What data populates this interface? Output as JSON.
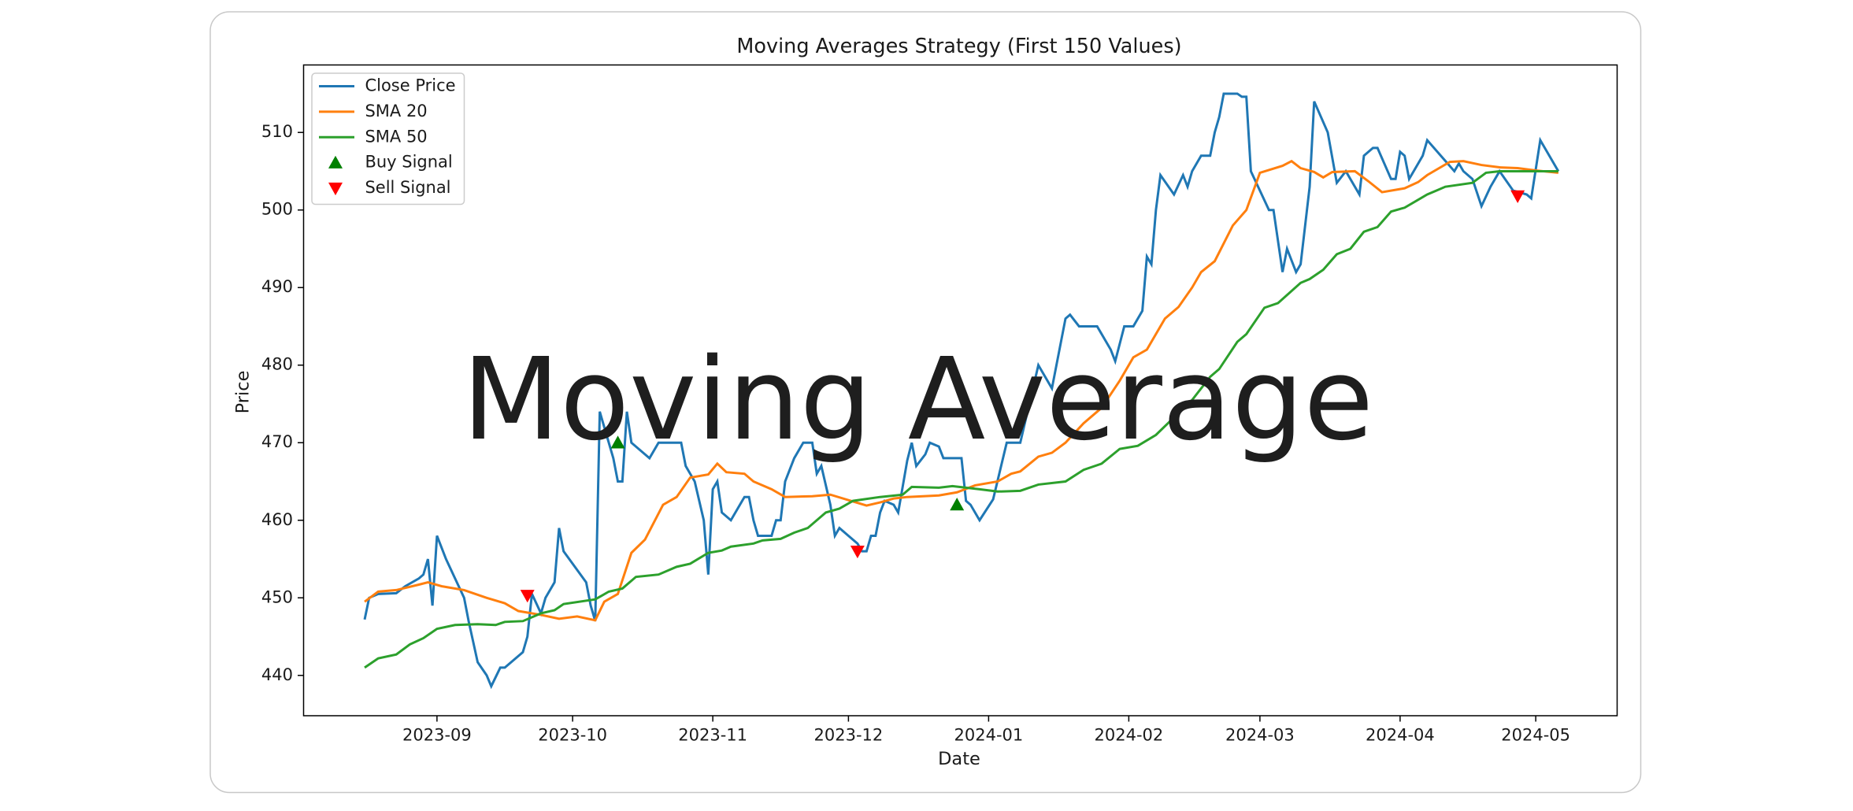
{
  "overlay_text": "Moving Average",
  "chart_data": {
    "type": "line",
    "title": "Moving Averages Strategy  (First 150 Values)",
    "x_label": "Date",
    "y_label": "Price",
    "xlim": [
      19571.5,
      19862
    ],
    "ylim": [
      434.8,
      518.7
    ],
    "xticks": [
      {
        "value": 19601,
        "label": "2023-09"
      },
      {
        "value": 19631,
        "label": "2023-10"
      },
      {
        "value": 19662,
        "label": "2023-11"
      },
      {
        "value": 19692,
        "label": "2023-12"
      },
      {
        "value": 19723,
        "label": "2024-01"
      },
      {
        "value": 19754,
        "label": "2024-02"
      },
      {
        "value": 19783,
        "label": "2024-03"
      },
      {
        "value": 19814,
        "label": "2024-04"
      },
      {
        "value": 19844,
        "label": "2024-05"
      }
    ],
    "yticks": [
      440,
      450,
      460,
      470,
      480,
      490,
      500,
      510
    ],
    "legend": "upper left",
    "series": [
      {
        "name": "Close Price",
        "color": "#1f77b4",
        "kind": "line",
        "x": [
          19585,
          19586,
          19588,
          19592,
          19594,
          19597,
          19598,
          19599,
          19600,
          19601,
          19603,
          19605,
          19607,
          19608,
          19610,
          19612,
          19613,
          19615,
          19616,
          19620,
          19621,
          19622,
          19624,
          19625,
          19627,
          19628,
          19629,
          19634,
          19635,
          19636,
          19637,
          19640,
          19641,
          19642,
          19643,
          19644,
          19647,
          19648,
          19650,
          19655,
          19656,
          19658,
          19660,
          19661,
          19662,
          19663,
          19664,
          19666,
          19669,
          19670,
          19671,
          19672,
          19675,
          19676,
          19677,
          19678,
          19680,
          19682,
          19684,
          19685,
          19686,
          19688,
          19689,
          19690,
          19692,
          19694,
          19695,
          19696,
          19697,
          19698,
          19699,
          19700,
          19702,
          19703,
          19705,
          19706,
          19707,
          19709,
          19710,
          19712,
          19713,
          19717,
          19718,
          19719,
          19721,
          19724,
          19727,
          19730,
          19732,
          19734,
          19737,
          19740,
          19741,
          19743,
          19747,
          19750,
          19751,
          19753,
          19755,
          19757,
          19758,
          19759,
          19760,
          19761,
          19764,
          19766,
          19767,
          19768,
          19770,
          19772,
          19773,
          19774,
          19775,
          19778,
          19779,
          19780,
          19781,
          19785,
          19786,
          19788,
          19789,
          19791,
          19792,
          19794,
          19795,
          19798,
          19800,
          19802,
          19805,
          19806,
          19808,
          19809,
          19812,
          19813,
          19814,
          19815,
          19816,
          19817,
          19819,
          19820,
          19823,
          19826,
          19827,
          19828,
          19830,
          19832,
          19834,
          19836,
          19839,
          19842,
          19843,
          19845,
          19849
        ],
        "values": [
          447.2,
          450,
          450.5,
          450.6,
          451.5,
          452.5,
          453,
          455,
          449,
          458,
          455,
          452.5,
          450,
          447,
          441.7,
          440,
          438.6,
          441,
          441,
          443,
          445,
          450.5,
          448,
          450,
          452,
          459,
          456,
          452,
          449,
          447,
          474,
          468,
          465,
          465,
          474,
          470,
          468.5,
          468,
          470,
          470,
          467,
          465,
          460,
          453,
          464,
          465,
          461,
          460,
          463,
          463,
          460,
          458,
          458,
          460,
          460,
          465,
          468,
          470,
          470,
          466,
          467,
          462,
          458,
          459,
          458,
          457,
          456,
          456,
          458,
          458,
          461,
          462.5,
          462,
          461,
          467.7,
          470,
          467,
          468.5,
          470,
          469.5,
          468,
          468,
          462.5,
          462,
          460,
          462.7,
          470,
          470,
          475,
          480,
          477,
          486,
          486.5,
          485,
          485,
          482,
          480.5,
          485,
          485,
          487,
          494,
          493,
          500,
          504.5,
          502,
          504.5,
          503,
          505,
          507,
          507,
          510,
          512,
          515,
          515,
          514.6,
          514.6,
          505,
          500,
          500,
          492,
          495,
          492,
          493,
          503,
          514,
          510,
          503.5,
          505,
          502,
          507,
          508,
          508,
          504,
          504,
          507.5,
          507,
          504,
          505,
          507,
          509,
          507,
          505,
          506,
          505,
          504,
          500.5,
          503,
          505,
          502.5,
          502,
          501.5,
          509,
          505
        ]
      },
      {
        "name": "SMA 20",
        "color": "#ff7f0e",
        "kind": "line",
        "x": [
          19585,
          19588,
          19592,
          19597,
          19599,
          19602,
          19607,
          19612,
          19616,
          19619,
          19624,
          19628,
          19632,
          19636,
          19638,
          19641,
          19644,
          19647,
          19651,
          19654,
          19657,
          19661,
          19663,
          19665,
          19669,
          19671,
          19675,
          19678,
          19684,
          19688,
          19692,
          19696,
          19699,
          19702,
          19705,
          19712,
          19716,
          19720,
          19725,
          19728,
          19730,
          19734,
          19737,
          19740,
          19744,
          19748,
          19752,
          19755,
          19758,
          19762,
          19765,
          19768,
          19770,
          19773,
          19777,
          19780,
          19783,
          19788,
          19790,
          19792,
          19795,
          19797,
          19799,
          19804,
          19807,
          19810,
          19815,
          19818,
          19820,
          19825,
          19828,
          19832,
          19836,
          19840,
          19844,
          19849
        ],
        "values": [
          449.5,
          450.8,
          451,
          451.7,
          452,
          451.5,
          451,
          450,
          449.3,
          448.3,
          447.8,
          447.3,
          447.6,
          447.1,
          449.5,
          450.5,
          455.8,
          457.5,
          462,
          463,
          465.5,
          465.9,
          467.3,
          466.2,
          466,
          465,
          464,
          463,
          463.1,
          463.3,
          462.6,
          461.9,
          462.3,
          462.8,
          463,
          463.2,
          463.6,
          464.5,
          465,
          466,
          466.3,
          468.2,
          468.7,
          470,
          472.5,
          474.5,
          478,
          481,
          482,
          486,
          487.5,
          490,
          492,
          493.4,
          498,
          500,
          504.8,
          505.7,
          506.3,
          505.4,
          504.9,
          504.2,
          504.9,
          505,
          503.7,
          502.3,
          502.8,
          503.6,
          504.5,
          506.2,
          506.3,
          505.8,
          505.5,
          505.4,
          505.1,
          504.8
        ]
      },
      {
        "name": "SMA 50",
        "color": "#2ca02c",
        "kind": "line",
        "x": [
          19585,
          19588,
          19592,
          19595,
          19598,
          19601,
          19605,
          19610,
          19614,
          19616,
          19620,
          19624,
          19627,
          19629,
          19636,
          19639,
          19642,
          19645,
          19650,
          19654,
          19657,
          19661,
          19664,
          19666,
          19671,
          19673,
          19677,
          19680,
          19683,
          19687,
          19690,
          19693,
          19699,
          19704,
          19706,
          19712,
          19715,
          19721,
          19725,
          19730,
          19734,
          19740,
          19744,
          19748,
          19752,
          19756,
          19760,
          19763,
          19766,
          19768,
          19772,
          19774,
          19778,
          19780,
          19784,
          19787,
          19792,
          19794,
          19797,
          19800,
          19803,
          19806,
          19809,
          19812,
          19815,
          19820,
          19822,
          19824,
          19830,
          19833,
          19836,
          19844,
          19849
        ],
        "values": [
          441,
          442.2,
          442.7,
          444,
          444.8,
          446,
          446.5,
          446.6,
          446.5,
          446.9,
          447,
          448,
          448.4,
          449.2,
          449.8,
          450.8,
          451.2,
          452.7,
          453,
          454,
          454.4,
          455.8,
          456.1,
          456.6,
          457,
          457.4,
          457.6,
          458.4,
          459,
          461,
          461.5,
          462.5,
          463,
          463.3,
          464.3,
          464.2,
          464.4,
          464,
          463.7,
          463.8,
          464.6,
          465,
          466.5,
          467.3,
          469.2,
          469.6,
          471,
          472.7,
          474.5,
          475.5,
          478.5,
          479.5,
          483,
          484,
          487.4,
          488,
          490.6,
          491.1,
          492.3,
          494.3,
          495,
          497.2,
          497.8,
          499.8,
          500.3,
          502,
          502.5,
          503,
          503.5,
          504.8,
          505,
          505,
          505
        ]
      },
      {
        "name": "Buy Signal",
        "color": "green",
        "kind": "scatter",
        "marker": "triangle-up",
        "x": [
          19641,
          19716
        ],
        "values": [
          470,
          462
        ]
      },
      {
        "name": "Sell Signal",
        "color": "red",
        "kind": "scatter",
        "marker": "triangle-down",
        "x": [
          19621,
          19694,
          19840
        ],
        "values": [
          450.3,
          456,
          501.8
        ]
      }
    ]
  }
}
